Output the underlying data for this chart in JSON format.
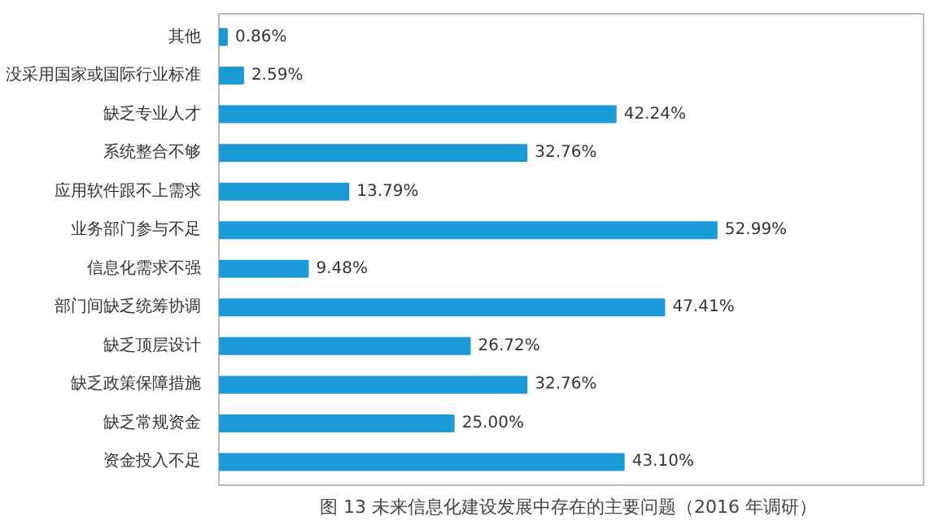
{
  "chart_data": {
    "type": "bar",
    "orientation": "horizontal",
    "title": "图 13  未来信息化建设发展中存在的主要问题（2016 年调研）",
    "categories": [
      "其他",
      "没采用国家或国际行业标准",
      "缺乏专业人才",
      "系统整合不够",
      "应用软件跟不上需求",
      "业务部门参与不足",
      "信息化需求不强",
      "部门间缺乏统筹协调",
      "缺乏顶层设计",
      "缺乏政策保障措施",
      "缺乏常规资金",
      "资金投入不足"
    ],
    "values": [
      0.86,
      2.59,
      42.24,
      32.76,
      13.79,
      52.99,
      9.48,
      47.41,
      26.72,
      32.76,
      25.0,
      43.1
    ],
    "value_labels": [
      "0.86%",
      "2.59%",
      "42.24%",
      "32.76%",
      "13.79%",
      "52.99%",
      "9.48%",
      "47.41%",
      "26.72%",
      "32.76%",
      "25.00%",
      "43.10%"
    ],
    "color": "#1a9ad6",
    "xlim": [
      0,
      75
    ],
    "tick_labels": "y",
    "grid": false
  }
}
